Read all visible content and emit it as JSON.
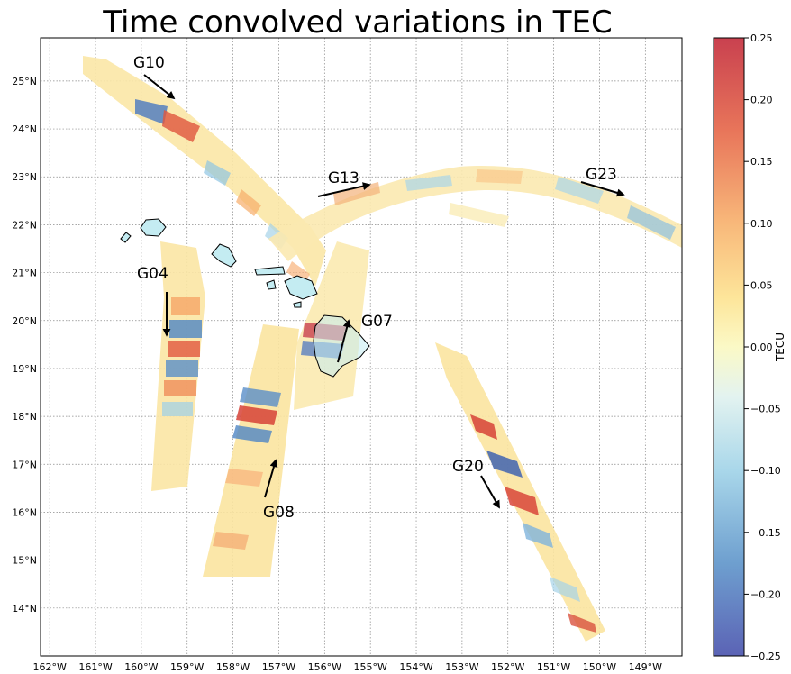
{
  "title": "Time convolved variations in TEC",
  "map": {
    "lon_range": [
      -162.2,
      -148.2
    ],
    "lat_range": [
      13.0,
      25.9
    ],
    "lon_ticks": [
      "162°W",
      "161°W",
      "160°W",
      "159°W",
      "158°W",
      "157°W",
      "156°W",
      "155°W",
      "154°W",
      "153°W",
      "152°W",
      "151°W",
      "150°W",
      "149°W"
    ],
    "lat_ticks": [
      "14°N",
      "15°N",
      "16°N",
      "17°N",
      "18°N",
      "19°N",
      "20°N",
      "21°N",
      "22°N",
      "23°N",
      "24°N",
      "25°N"
    ],
    "grid": true,
    "land_color": "#c4ecf2",
    "coastline_color": "#000000"
  },
  "colorbar": {
    "label": "TECU",
    "range": [
      -0.25,
      0.25
    ],
    "ticks": [
      "0.25",
      "0.20",
      "0.15",
      "0.10",
      "0.05",
      "0.00",
      "−0.05",
      "−0.10",
      "−0.15",
      "−0.20",
      "−0.25"
    ],
    "colormap": "RdYlBu_r"
  },
  "satellites": [
    {
      "id": "G10",
      "label": "G10",
      "color": "#000000"
    },
    {
      "id": "G13",
      "label": "G13",
      "color": "#000000"
    },
    {
      "id": "G23",
      "label": "G23",
      "color": "#000000"
    },
    {
      "id": "G04",
      "label": "G04",
      "color": "#000000"
    },
    {
      "id": "G07",
      "label": "G07",
      "color": "#000000"
    },
    {
      "id": "G08",
      "label": "G08",
      "color": "#000000"
    },
    {
      "id": "G20",
      "label": "G20",
      "color": "#000000"
    }
  ]
}
